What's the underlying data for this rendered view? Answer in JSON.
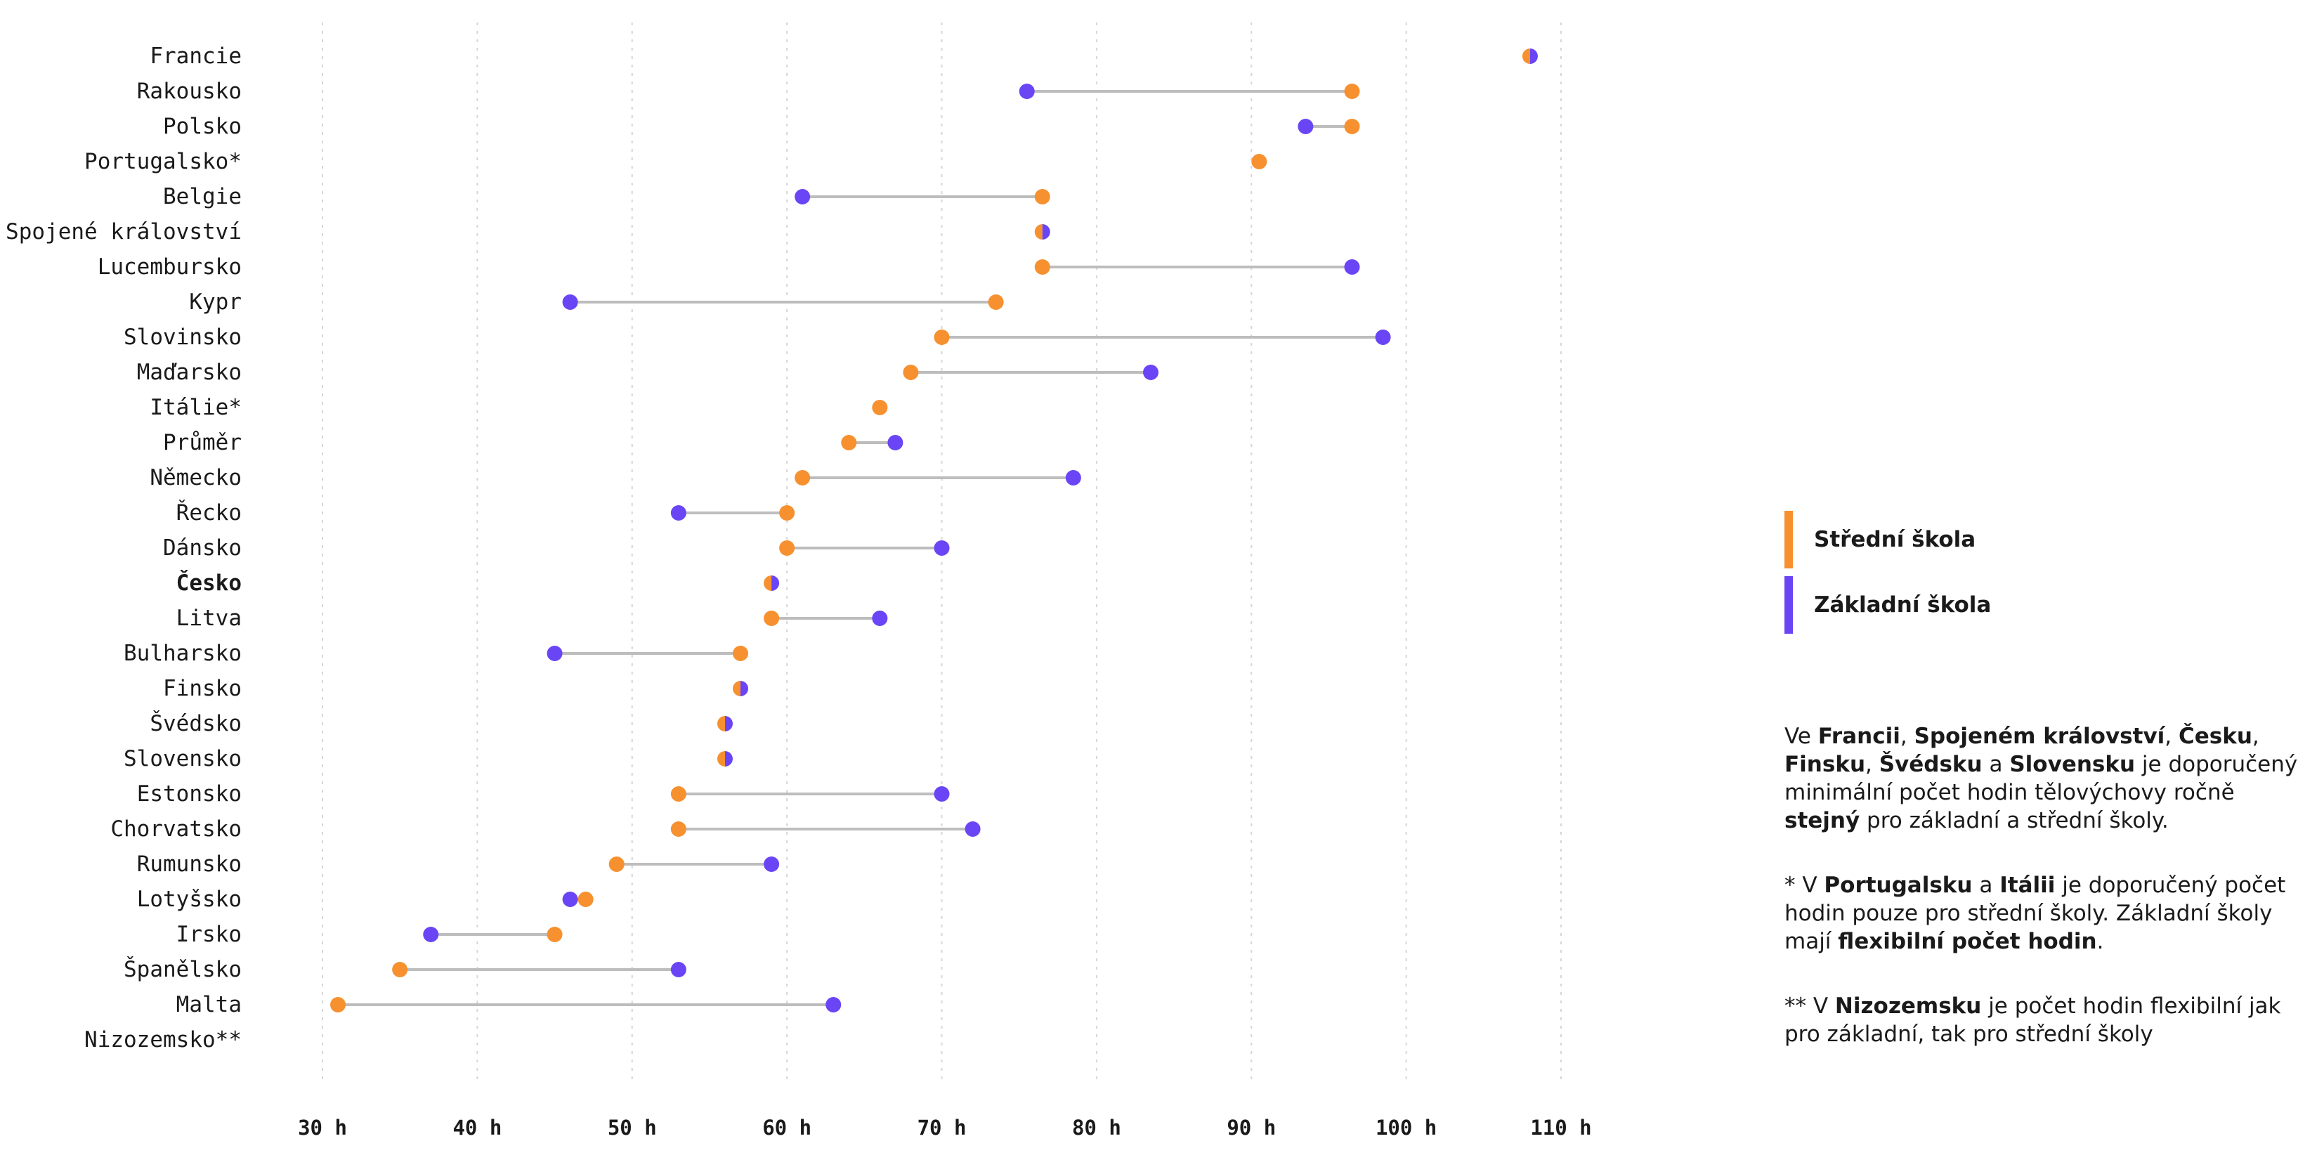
{
  "colors": {
    "stredni": "#f7902f",
    "zakladni": "#6a45f5",
    "connector": "#bdbdbd"
  },
  "legend": {
    "stredni": "Střední škola",
    "zakladni": "Základní škola"
  },
  "notes": {
    "n1": [
      {
        "t": "Ve "
      },
      {
        "t": "Francii",
        "b": true
      },
      {
        "t": ", "
      },
      {
        "t": "Spojeném království",
        "b": true
      },
      {
        "t": ", "
      },
      {
        "t": "Česku",
        "b": true
      },
      {
        "t": ", "
      },
      {
        "t": "Finsku",
        "b": true
      },
      {
        "t": ", "
      },
      {
        "t": "Švédsku",
        "b": true
      },
      {
        "t": " a "
      },
      {
        "t": "Slovensku",
        "b": true
      },
      {
        "t": " je doporučený minimální počet hodin tělovýchovy ročně "
      },
      {
        "t": "stejný",
        "b": true
      },
      {
        "t": " pro základní a střední školy."
      }
    ],
    "n2": [
      {
        "t": "* V "
      },
      {
        "t": "Portugalsku",
        "b": true
      },
      {
        "t": " a "
      },
      {
        "t": "Itálii",
        "b": true
      },
      {
        "t": " je doporučený počet hodin pouze pro střední školy. Základní školy mají "
      },
      {
        "t": "flexibilní počet hodin",
        "b": true
      },
      {
        "t": "."
      }
    ],
    "n3": [
      {
        "t": "** V "
      },
      {
        "t": "Nizozemsku",
        "b": true
      },
      {
        "t": " je počet hodin flexibilní jak pro základní, tak pro střední školy"
      }
    ]
  },
  "chart_data": {
    "type": "dumbbell",
    "xlim": [
      30,
      110
    ],
    "x_ticks": [
      30,
      40,
      50,
      60,
      70,
      80,
      90,
      100,
      110
    ],
    "tick_labels": [
      "30 h",
      "40 h",
      "50 h",
      "60 h",
      "70 h",
      "80 h",
      "90 h",
      "100 h",
      "110 h"
    ],
    "grid": "vertical dotted",
    "series_names": [
      "Střední škola",
      "Základní škola"
    ],
    "rows": [
      {
        "country": "Francie",
        "stredni": 108,
        "zakladni": 108
      },
      {
        "country": "Rakousko",
        "stredni": 96.5,
        "zakladni": 75.5
      },
      {
        "country": "Polsko",
        "stredni": 96.5,
        "zakladni": 93.5
      },
      {
        "country": "Portugalsko*",
        "stredni": 90.5,
        "zakladni": null
      },
      {
        "country": "Belgie",
        "stredni": 76.5,
        "zakladni": 61
      },
      {
        "country": "Spojené království",
        "stredni": 76.5,
        "zakladni": 76.5
      },
      {
        "country": "Lucembursko",
        "stredni": 76.5,
        "zakladni": 96.5
      },
      {
        "country": "Kypr",
        "stredni": 73.5,
        "zakladni": 46
      },
      {
        "country": "Slovinsko",
        "stredni": 70,
        "zakladni": 98.5
      },
      {
        "country": "Maďarsko",
        "stredni": 68,
        "zakladni": 83.5
      },
      {
        "country": "Itálie*",
        "stredni": 66,
        "zakladni": null
      },
      {
        "country": "Průměr",
        "stredni": 64,
        "zakladni": 67
      },
      {
        "country": "Německo",
        "stredni": 61,
        "zakladni": 78.5
      },
      {
        "country": "Řecko",
        "stredni": 60,
        "zakladni": 53
      },
      {
        "country": "Dánsko",
        "stredni": 60,
        "zakladni": 70
      },
      {
        "country": "Česko",
        "stredni": 59,
        "zakladni": 59,
        "bold": true
      },
      {
        "country": "Litva",
        "stredni": 59,
        "zakladni": 66
      },
      {
        "country": "Bulharsko",
        "stredni": 57,
        "zakladni": 45
      },
      {
        "country": "Finsko",
        "stredni": 57,
        "zakladni": 57
      },
      {
        "country": "Švédsko",
        "stredni": 56,
        "zakladni": 56
      },
      {
        "country": "Slovensko",
        "stredni": 56,
        "zakladni": 56
      },
      {
        "country": "Estonsko",
        "stredni": 53,
        "zakladni": 70
      },
      {
        "country": "Chorvatsko",
        "stredni": 53,
        "zakladni": 72
      },
      {
        "country": "Rumunsko",
        "stredni": 49,
        "zakladni": 59
      },
      {
        "country": "Lotyšsko",
        "stredni": 47,
        "zakladni": 46
      },
      {
        "country": "Irsko",
        "stredni": 45,
        "zakladni": 37
      },
      {
        "country": "Španělsko",
        "stredni": 35,
        "zakladni": 53
      },
      {
        "country": "Malta",
        "stredni": 31,
        "zakladni": 63
      },
      {
        "country": "Nizozemsko**",
        "stredni": null,
        "zakladni": null
      }
    ]
  }
}
